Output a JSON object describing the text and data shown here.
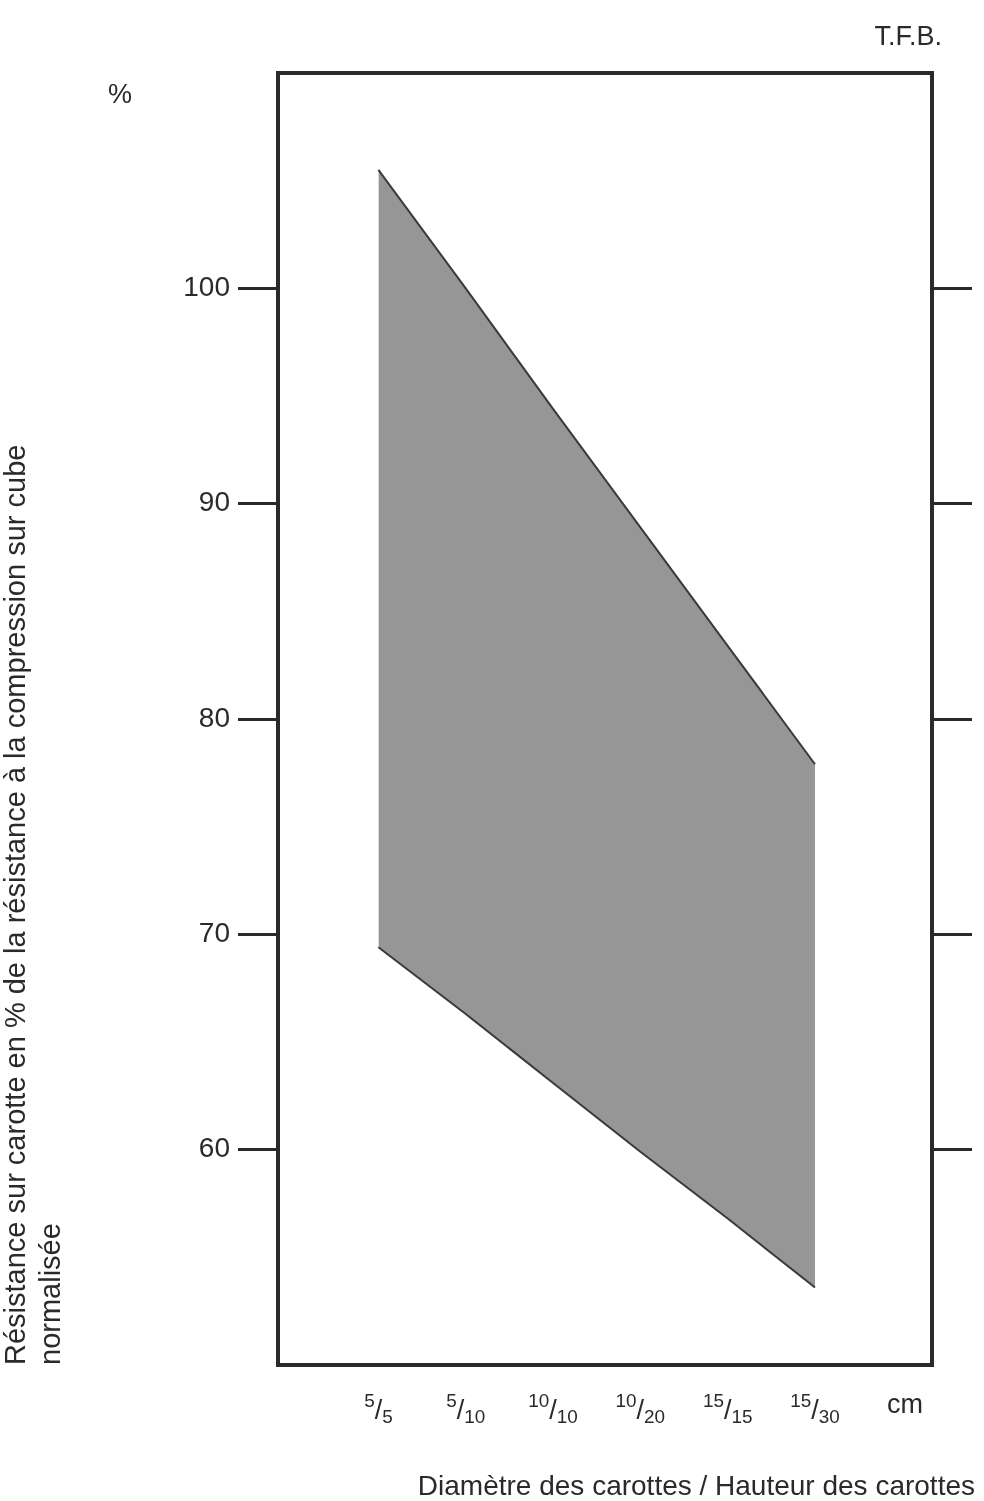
{
  "chart_data": {
    "type": "area",
    "ylabel": "Résistance sur carotte en % de la résistance à la compression sur cube normalisée",
    "xlabel": "Diamètre des carottes / Hauteur des carottes",
    "categories": [
      "$^{5}$/$_{5}$",
      "$^{5}$/$_{10}$",
      "$^{10}$/$_{10}$",
      "$^{10}$/$_{20}$",
      "$^{15}$/$_{15}$",
      "$^{15}$/$_{30}$"
    ],
    "series": [
      {
        "type": "line",
        "color": "#3a3a3a",
        "values": [
          69.4,
          66.3,
          63.1,
          59.9,
          56.8,
          53.6
        ]
      },
      {
        "color": "#3a3a3a",
        "values": [
          105.5,
          100.0,
          94.4,
          88.9,
          83.4,
          77.9
        ]
      }
    ],
    "ylim": [
      50,
      110
    ],
    "yticks": [
      60,
      70,
      80,
      90,
      100
    ],
    "grid": false,
    "annotations": [
      "%",
      "cm",
      "T.F.B."
    ]
  }
}
